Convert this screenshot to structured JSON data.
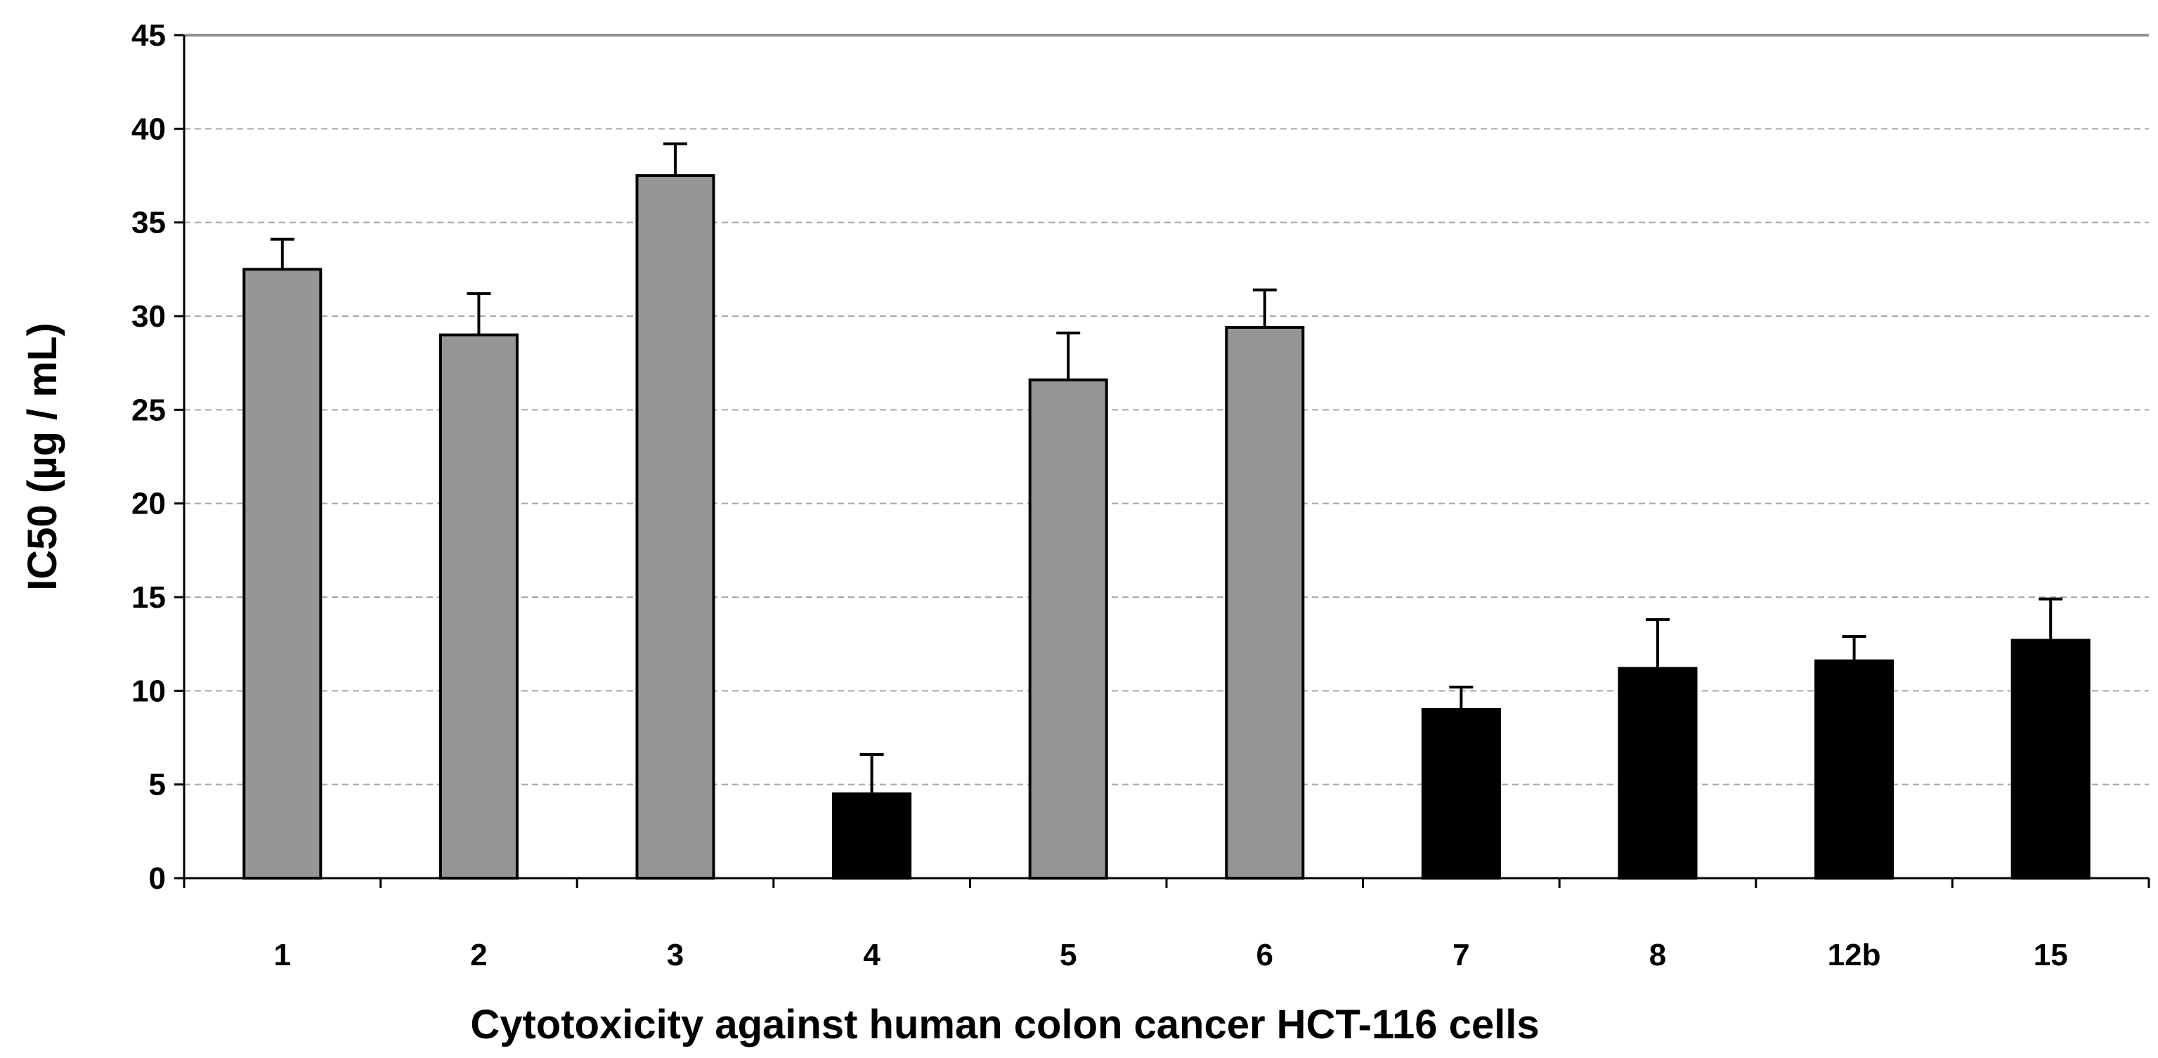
{
  "chart_data": {
    "type": "bar",
    "title": "",
    "xlabel": "Cytotoxicity against human colon cancer HCT-116 cells",
    "ylabel": "IC50 (µg / mL)",
    "ylim": [
      0,
      45
    ],
    "yticks": [
      "0",
      "5",
      "10",
      "15",
      "20",
      "25",
      "30",
      "35",
      "40",
      "45"
    ],
    "grid": true,
    "categories": [
      "1",
      "2",
      "3",
      "4",
      "5",
      "6",
      "7",
      "8",
      "12b",
      "15"
    ],
    "values": [
      32.5,
      29.0,
      37.5,
      4.5,
      26.6,
      29.4,
      9.0,
      11.2,
      11.6,
      12.7
    ],
    "errors": [
      1.6,
      2.2,
      1.7,
      2.1,
      2.5,
      2.0,
      1.2,
      2.6,
      1.3,
      2.2
    ],
    "bar_colors": [
      "#969696",
      "#969696",
      "#969696",
      "#000000",
      "#969696",
      "#969696",
      "#000000",
      "#000000",
      "#000000",
      "#000000"
    ],
    "legend": "none"
  }
}
